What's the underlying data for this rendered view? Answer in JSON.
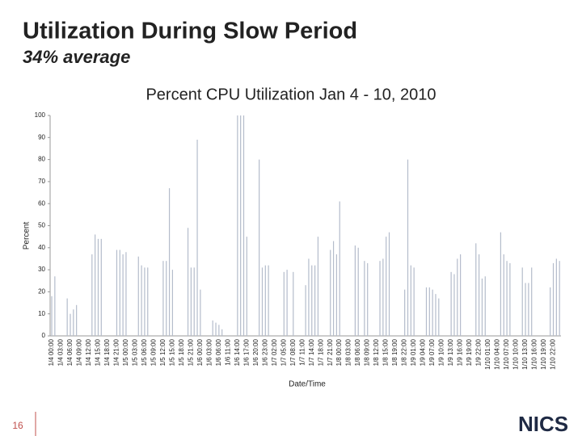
{
  "slide": {
    "title": "Utilization During Slow Period",
    "subtitle": "34% average",
    "page_number": "16",
    "logo": "NICS"
  },
  "chart_data": {
    "type": "bar",
    "title": "Percent CPU Utilization Jan 4 - 10, 2010",
    "y_label": "Percent",
    "x_label": "Date/Time",
    "color": "#b4bccb",
    "ylim": [
      0,
      100
    ],
    "yticks": [
      0,
      10,
      20,
      30,
      40,
      50,
      60,
      70,
      80,
      90,
      100
    ],
    "grid": false,
    "categories": [
      "1/4 00:00",
      null,
      null,
      "1/4 03:00",
      null,
      null,
      "1/4 06:00",
      null,
      null,
      "1/4 09:00",
      null,
      null,
      "1/4 12:00",
      null,
      null,
      "1/4 15:00",
      null,
      null,
      "1/4 18:00",
      null,
      null,
      "1/4 21:00",
      null,
      null,
      "1/5 00:00",
      null,
      null,
      "1/5 03:00",
      null,
      null,
      "1/5 06:00",
      null,
      null,
      "1/5 09:00",
      null,
      null,
      "1/5 12:00",
      null,
      null,
      "1/5 15:00",
      null,
      null,
      "1/5 18:00",
      null,
      null,
      "1/5 21:00",
      null,
      null,
      "1/6 00:00",
      null,
      null,
      "1/6 03:00",
      null,
      null,
      "1/6 06:00",
      null,
      null,
      "1/6 11:00",
      null,
      null,
      "1/6 14:00",
      null,
      null,
      "1/6 17:00",
      null,
      null,
      "1/6 20:00",
      null,
      null,
      "1/6 23:00",
      null,
      null,
      "1/7 02:00",
      null,
      null,
      "1/7 05:00",
      null,
      null,
      "1/7 08:00",
      null,
      null,
      "1/7 11:00",
      null,
      null,
      "1/7 14:00",
      null,
      null,
      "1/7 18:00",
      null,
      null,
      "1/7 21:00",
      null,
      null,
      "1/8 00:00",
      null,
      null,
      "1/8 03:00",
      null,
      null,
      "1/8 06:00",
      null,
      null,
      "1/8 09:00",
      null,
      null,
      "1/8 12:00",
      null,
      null,
      "1/8 15:00",
      null,
      null,
      "1/8 19:00",
      null,
      null,
      "1/8 22:00",
      null,
      null,
      "1/9 01:00",
      null,
      null,
      "1/9 04:00",
      null,
      null,
      "1/9 07:00",
      null,
      null,
      "1/9 10:00",
      null,
      null,
      "1/9 13:00",
      null,
      null,
      "1/9 16:00",
      null,
      null,
      "1/9 19:00",
      null,
      null,
      "1/9 22:00",
      null,
      null,
      "1/10 01:00",
      null,
      null,
      "1/10 04:00",
      null,
      null,
      "1/10 07:00",
      null,
      null,
      "1/10 10:00",
      null,
      null,
      "1/10 13:00",
      null,
      null,
      "1/10 16:00",
      null,
      null,
      "1/10 19:00",
      null,
      null,
      "1/10 22:00",
      null,
      null
    ],
    "values": [
      18,
      27,
      0,
      0,
      0,
      17,
      10,
      12,
      14,
      0,
      0,
      0,
      0,
      37,
      46,
      44,
      44,
      0,
      0,
      0,
      0,
      39,
      39,
      37,
      38,
      0,
      0,
      0,
      36,
      32,
      31,
      31,
      0,
      0,
      0,
      0,
      34,
      34,
      67,
      30,
      0,
      0,
      0,
      0,
      49,
      31,
      31,
      89,
      21,
      0,
      0,
      0,
      7,
      6,
      5,
      3,
      0,
      0,
      0,
      0,
      100,
      100,
      100,
      45,
      0,
      0,
      0,
      80,
      31,
      32,
      32,
      0,
      0,
      0,
      0,
      29,
      30,
      0,
      29,
      0,
      0,
      0,
      23,
      35,
      32,
      32,
      45,
      0,
      0,
      0,
      39,
      43,
      37,
      61,
      0,
      0,
      0,
      0,
      41,
      40,
      0,
      34,
      33,
      0,
      0,
      0,
      34,
      35,
      45,
      47,
      0,
      0,
      0,
      0,
      21,
      80,
      32,
      31,
      0,
      0,
      0,
      22,
      22,
      21,
      19,
      17,
      0,
      0,
      0,
      29,
      28,
      35,
      37,
      0,
      0,
      0,
      0,
      42,
      37,
      26,
      27,
      0,
      0,
      0,
      0,
      47,
      37,
      34,
      33,
      0,
      0,
      0,
      31,
      24,
      24,
      31,
      0,
      0,
      0,
      0,
      0,
      22,
      33,
      35,
      34
    ]
  }
}
